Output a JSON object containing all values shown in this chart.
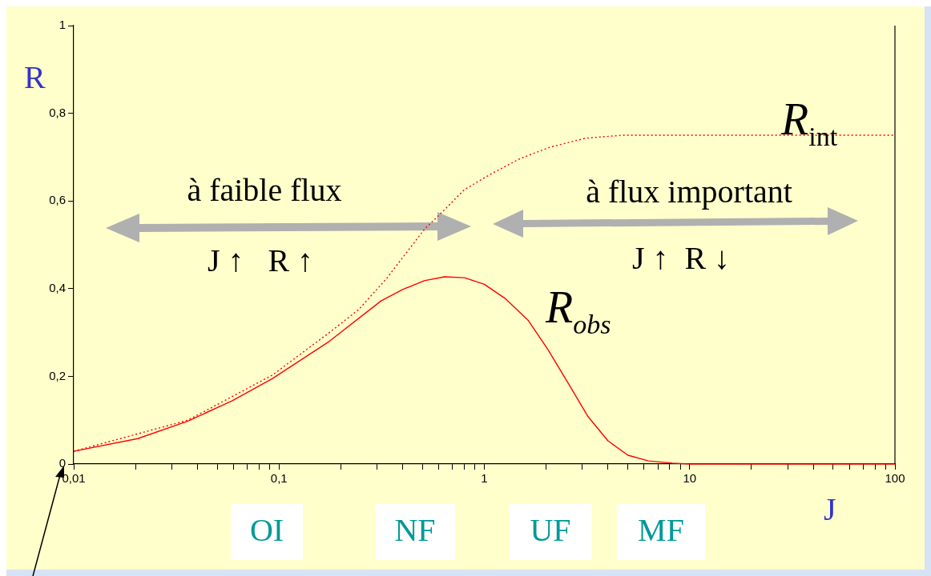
{
  "chart_data": {
    "type": "line",
    "xlabel": "J",
    "ylabel": "R",
    "log": "x",
    "xlim": [
      0.01,
      100
    ],
    "ylim": [
      0,
      1
    ],
    "xticks": [
      {
        "value": 0.01,
        "label": "0,01"
      },
      {
        "value": 0.02,
        "label": null
      },
      {
        "value": 0.03,
        "label": null
      },
      {
        "value": 0.04,
        "label": null
      },
      {
        "value": 0.05,
        "label": null
      },
      {
        "value": 0.06,
        "label": null
      },
      {
        "value": 0.07,
        "label": null
      },
      {
        "value": 0.08,
        "label": null
      },
      {
        "value": 0.09,
        "label": null
      },
      {
        "value": 0.1,
        "label": "0,1"
      },
      {
        "value": 0.2,
        "label": null
      },
      {
        "value": 0.3,
        "label": null
      },
      {
        "value": 0.4,
        "label": null
      },
      {
        "value": 0.5,
        "label": null
      },
      {
        "value": 0.6,
        "label": null
      },
      {
        "value": 0.7,
        "label": null
      },
      {
        "value": 0.8,
        "label": null
      },
      {
        "value": 0.9,
        "label": null
      },
      1,
      {
        "value": 2,
        "label": null
      },
      {
        "value": 3,
        "label": null
      },
      {
        "value": 4,
        "label": null
      },
      {
        "value": 5,
        "label": null
      },
      {
        "value": 6,
        "label": null
      },
      {
        "value": 7,
        "label": null
      },
      {
        "value": 8,
        "label": null
      },
      {
        "value": 9,
        "label": null
      },
      10,
      {
        "value": 20,
        "label": null
      },
      {
        "value": 30,
        "label": null
      },
      {
        "value": 40,
        "label": null
      },
      {
        "value": 50,
        "label": null
      },
      {
        "value": 60,
        "label": null
      },
      {
        "value": 70,
        "label": null
      },
      {
        "value": 80,
        "label": null
      },
      {
        "value": 90,
        "label": null
      },
      100
    ],
    "yticks": [
      0,
      {
        "value": 0.2,
        "label": "0,2"
      },
      {
        "value": 0.4,
        "label": "0,4"
      },
      {
        "value": 0.6,
        "label": "0,6"
      },
      {
        "value": 0.8,
        "label": "0,8"
      },
      1
    ],
    "grid": false,
    "legend": false,
    "marker": "none",
    "series": [
      {
        "name": "R$_{int}$",
        "color": "#ff0000",
        "line_style": "dotted",
        "x": [
          0.01,
          0.036,
          0.093,
          0.176,
          0.244,
          0.334,
          0.51,
          0.64,
          0.8,
          1.1,
          1.5,
          2.1,
          3.1,
          4.7,
          10,
          100
        ],
        "values": [
          0.029,
          0.1,
          0.203,
          0.3,
          0.352,
          0.423,
          0.535,
          0.58,
          0.626,
          0.664,
          0.697,
          0.723,
          0.743,
          0.75,
          0.75,
          0.75
        ]
      },
      {
        "name": "R$_{obs}$",
        "color": "#ff0000",
        "line_style": "solid",
        "x": [
          0.01,
          0.0205,
          0.036,
          0.059,
          0.093,
          0.176,
          0.314,
          0.4,
          0.51,
          0.64,
          0.8,
          1.0,
          1.26,
          1.64,
          2.04,
          2.57,
          3.2,
          4.0,
          5.0,
          6.3,
          8.2,
          10,
          100
        ],
        "values": [
          0.029,
          0.058,
          0.098,
          0.144,
          0.195,
          0.28,
          0.372,
          0.398,
          0.418,
          0.427,
          0.425,
          0.41,
          0.378,
          0.327,
          0.261,
          0.183,
          0.108,
          0.053,
          0.02,
          0.007,
          0.002,
          0,
          0
        ]
      }
    ],
    "annotations": [
      "à faible flux",
      "J ↑   R ↑",
      "à flux important",
      "J ↑  R ↓",
      "OI",
      "NF",
      "UF",
      "MF"
    ]
  }
}
